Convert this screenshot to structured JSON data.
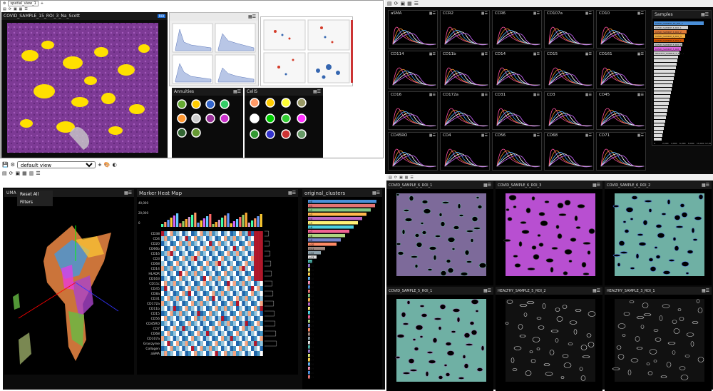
{
  "tl": {
    "view_name": "spatial_view_1",
    "roi_title": "COVID_SAMPLE_15_ROI_3_Na_Scott",
    "right_tag": "spatial_view_2",
    "legend_left_title": "Annuities",
    "legend_right_title": "CellS"
  },
  "marker_plots": [
    {
      "label": "aSMA"
    },
    {
      "label": "CCR2"
    },
    {
      "label": "CCR6"
    },
    {
      "label": "CD107a"
    },
    {
      "label": "CD10"
    },
    {
      "label": "CD114"
    },
    {
      "label": "CD11b"
    },
    {
      "label": "CD14"
    },
    {
      "label": "CD15"
    },
    {
      "label": "CD161"
    },
    {
      "label": "CD16"
    },
    {
      "label": "CD172a"
    },
    {
      "label": "CD31"
    },
    {
      "label": "CD3"
    },
    {
      "label": "CD45"
    },
    {
      "label": "CD45RO"
    },
    {
      "label": "CD4"
    },
    {
      "label": "CD56"
    },
    {
      "label": "CD68"
    },
    {
      "label": "CD71"
    }
  ],
  "samples": {
    "title": "Samples",
    "items": [
      "COVID_SAMPLE_16_ROI_3",
      "COVID_SAMPLE_6_ROI_1",
      "COVID_SAMPLE_6_ROI_2",
      "COVID_SAMPLE_6_ROI_3",
      "COVID_SAMPLE_5_ROI_1",
      "COVID_SAMPLE_5_ROI_2",
      "COVID_SAMPLE_5_ROI_3",
      "HEALTHY_SAMPLE_2_ROI_1"
    ],
    "axis_ticks": [
      "0",
      "2,000",
      "4,000",
      "6,000",
      "8,000",
      "10,000",
      "12,000"
    ]
  },
  "toolbar": {
    "view_select": "default view"
  },
  "umap": {
    "title": "UMA",
    "menu": [
      "Reset All",
      "Filters"
    ]
  },
  "heatmap": {
    "title": "Marker Heat Map",
    "y_ticks": [
      "40,000",
      "20,000",
      "0"
    ],
    "markers": [
      "CD38",
      "CD4",
      "CD20",
      "CD66b",
      "CD16",
      "CD3",
      "CD68",
      "CD14",
      "HLADR",
      "CD163",
      "CD11c",
      "CD45",
      "CD8a",
      "CD31",
      "CD172a",
      "CD11b",
      "CD15",
      "CD56",
      "CD45RO",
      "CD7",
      "CD68",
      "CD107a",
      "Granzyme",
      "Collagen",
      "aSMA"
    ]
  },
  "clusters": {
    "title": "original_clusters",
    "labels": [
      "c0",
      "c1",
      "c2",
      "c3",
      "c4",
      "c5",
      "c6",
      "c7",
      "c8",
      "c9",
      "c10",
      "c11",
      "c12",
      "c13",
      "c14",
      "c15",
      "c16",
      "c17",
      "c18",
      "c19",
      "c20",
      "c21",
      "c22",
      "c23",
      "c24",
      "c25",
      "c26",
      "c27",
      "c28",
      "c29",
      "c30",
      "c31",
      "c32",
      "c33",
      "c34",
      "c35",
      "c36",
      "c37",
      "c38",
      "c39",
      "c40",
      "c41"
    ]
  },
  "roi_views": [
    {
      "title": "COVID_SAMPLE_6_ROI_1"
    },
    {
      "title": "COVID_SAMPLE_6_ROI_3"
    },
    {
      "title": "COVID_SAMPLE_6_ROI_2"
    },
    {
      "title": "COVID_SAMPLE_5_ROI_1"
    },
    {
      "title": "HEALTHY_SAMPLE_5_ROI_2"
    },
    {
      "title": "HEALTHY_SAMPLE_3_ROI_1"
    }
  ],
  "colors": {
    "bg_dark": "#0b0b0b",
    "accent_blue": "#1e6fd9",
    "tissue_purple": "#8a3fa0",
    "highlight_yellow": "#ffe000"
  }
}
